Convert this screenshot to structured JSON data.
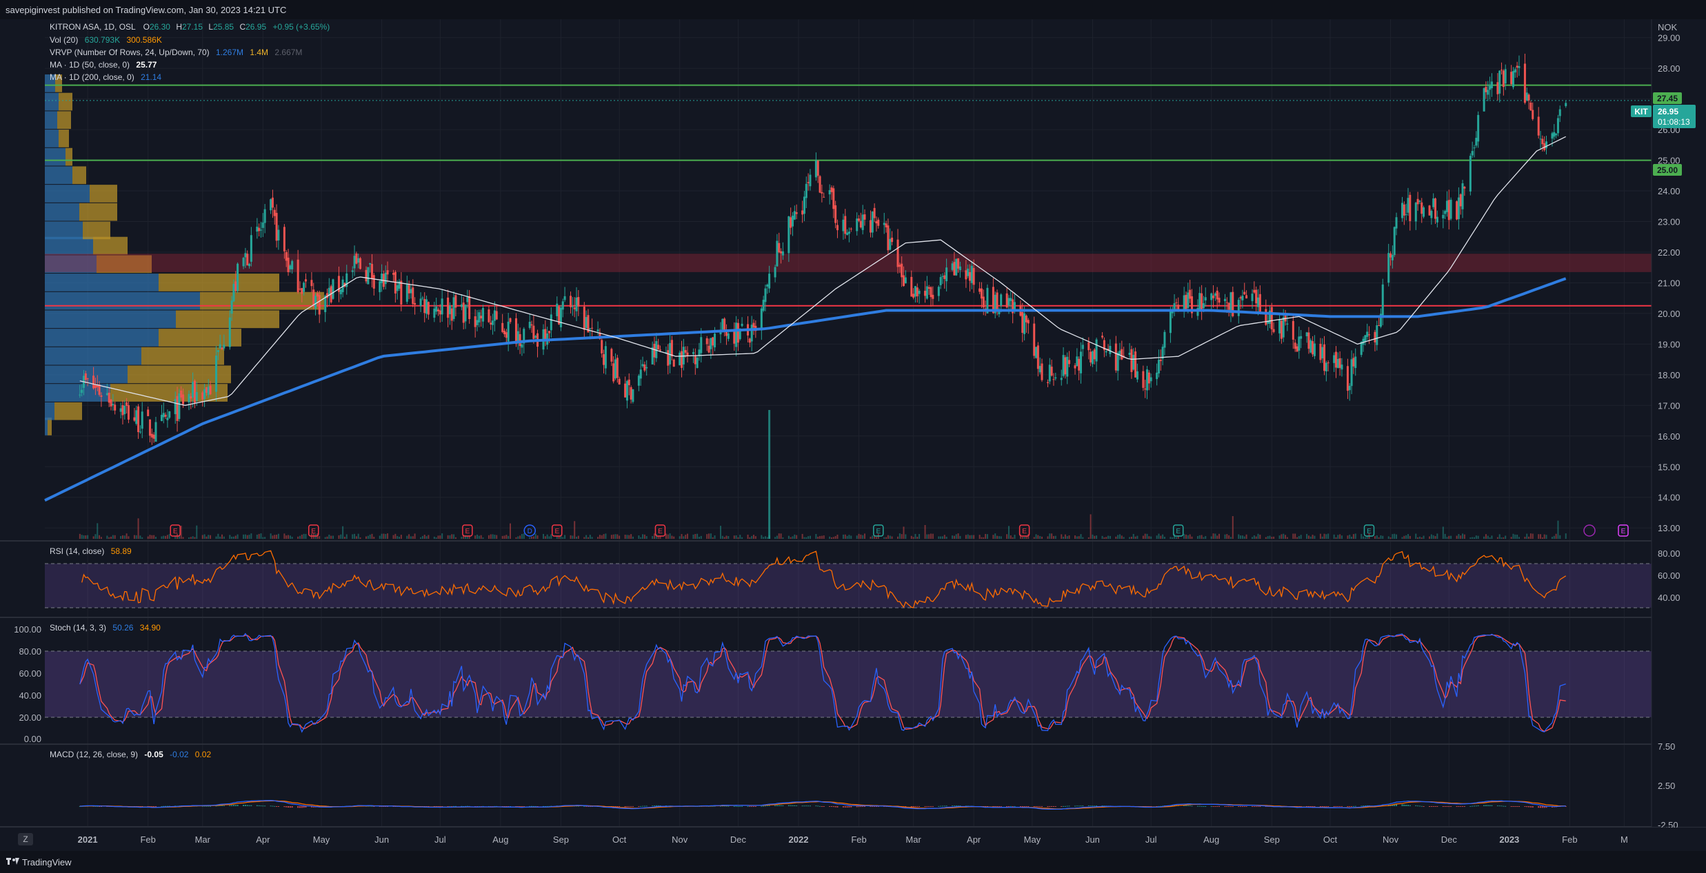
{
  "header": {
    "published": "savepiginvest published on TradingView.com, Jan 30, 2023 14:21 UTC"
  },
  "footer": {
    "brand": "TradingView",
    "zoom_key": "Z"
  },
  "colors": {
    "bg": "#131722",
    "up": "#26a69a",
    "down": "#ef5350",
    "ma50": "#e0e3eb",
    "ma200": "#2962ff",
    "vp_up": "#2f6fa8",
    "vp_down": "#b8912a",
    "rsi": "#ff6d00",
    "stoch_k": "#2962ff",
    "stoch_d": "#ff5252",
    "green_level": "#4caf50",
    "red_level": "#f23645",
    "band": "#7e57c2"
  },
  "main": {
    "symbol_line": {
      "name": "KITRON ASA, 1D, OSL",
      "open_label": "O",
      "open": "26.30",
      "high_label": "H",
      "high": "27.15",
      "low_label": "L",
      "low": "25.85",
      "close_label": "C",
      "close": "26.95",
      "change": "+0.95 (+3.65%)"
    },
    "vol_line": {
      "label": "Vol (20)",
      "v1": "630.793K",
      "v2": "300.586K"
    },
    "vrvp_line": {
      "label": "VRVP (Number Of Rows, 24, Up/Down, 70)",
      "v1": "1.267M",
      "v2": "1.4M",
      "v3": "2.667M"
    },
    "ma50_line": {
      "label": "MA · 1D (50, close, 0)",
      "value": "25.77"
    },
    "ma200_line": {
      "label": "MA · 1D (200, close, 0)",
      "value": "21.14"
    },
    "currency": "NOK",
    "price_ticks": [
      "29.00",
      "28.00",
      "27.00",
      "26.00",
      "25.00",
      "24.00",
      "23.00",
      "22.00",
      "21.00",
      "20.00",
      "19.00",
      "18.00",
      "17.00",
      "16.00",
      "15.00",
      "14.00",
      "13.00"
    ],
    "levels": {
      "upper": "27.45",
      "lower": "25.00"
    },
    "last_tag": {
      "symbol": "KIT",
      "price": "26.95",
      "countdown": "01:08:13"
    },
    "events": [
      "E",
      "E",
      "E",
      "D",
      "E",
      "E",
      "E",
      "E",
      "E",
      "E"
    ]
  },
  "rsi": {
    "label": "RSI (14, close)",
    "value": "58.89",
    "ticks": [
      "80.00",
      "60.00",
      "40.00"
    ]
  },
  "stoch": {
    "label": "Stoch (14, 3, 3)",
    "k": "50.26",
    "d": "34.90",
    "ticks": [
      "100.00",
      "80.00",
      "60.00",
      "40.00",
      "20.00",
      "0.00"
    ]
  },
  "macd": {
    "label": "MACD (12, 26, close, 9)",
    "v1": "-0.05",
    "v2": "-0.02",
    "v3": "0.02",
    "ticks": [
      "7.50",
      "2.50",
      "-2.50"
    ]
  },
  "time_axis": [
    "2021",
    "Feb",
    "Mar",
    "Apr",
    "May",
    "Jun",
    "Jul",
    "Aug",
    "Sep",
    "Oct",
    "Nov",
    "Dec",
    "2022",
    "Feb",
    "Mar",
    "Apr",
    "May",
    "Jun",
    "Jul",
    "Aug",
    "Sep",
    "Oct",
    "Nov",
    "Dec",
    "2023",
    "Feb",
    "M"
  ],
  "chart_data": {
    "type": "candlestick",
    "title": "KITRON ASA, 1D, OSL",
    "ylabel": "NOK",
    "ylim": [
      12.6,
      29.6
    ],
    "x_range": [
      "2020-12-10",
      "2023-03-15"
    ],
    "horizontal_levels": [
      27.45,
      25.0,
      20.25
    ],
    "resistance_zone": [
      21.35,
      21.95
    ],
    "price_path": [
      [
        "2020-12-28",
        17.8
      ],
      [
        "2021-01-10",
        17.4
      ],
      [
        "2021-01-25",
        16.6
      ],
      [
        "2021-02-05",
        16.1
      ],
      [
        "2021-02-20",
        17.2
      ],
      [
        "2021-03-05",
        17.6
      ],
      [
        "2021-03-20",
        21.5
      ],
      [
        "2021-04-05",
        23.3
      ],
      [
        "2021-04-15",
        21.4
      ],
      [
        "2021-05-01",
        20.3
      ],
      [
        "2021-05-20",
        21.6
      ],
      [
        "2021-06-05",
        20.9
      ],
      [
        "2021-06-25",
        20.3
      ],
      [
        "2021-07-15",
        20.1
      ],
      [
        "2021-08-05",
        19.5
      ],
      [
        "2021-08-20",
        19.2
      ],
      [
        "2021-09-05",
        20.5
      ],
      [
        "2021-09-20",
        19.1
      ],
      [
        "2021-10-05",
        17.4
      ],
      [
        "2021-10-20",
        18.8
      ],
      [
        "2021-11-05",
        18.6
      ],
      [
        "2021-11-25",
        19.5
      ],
      [
        "2021-12-10",
        19.2
      ],
      [
        "2021-12-20",
        21.8
      ],
      [
        "2022-01-10",
        24.6
      ],
      [
        "2022-01-25",
        22.6
      ],
      [
        "2022-02-10",
        23.2
      ],
      [
        "2022-02-25",
        21.0
      ],
      [
        "2022-03-10",
        20.5
      ],
      [
        "2022-03-25",
        21.6
      ],
      [
        "2022-04-10",
        20.3
      ],
      [
        "2022-04-25",
        20.0
      ],
      [
        "2022-05-05",
        18.1
      ],
      [
        "2022-05-20",
        18.3
      ],
      [
        "2022-06-05",
        18.9
      ],
      [
        "2022-06-20",
        18.3
      ],
      [
        "2022-07-01",
        17.8
      ],
      [
        "2022-07-15",
        20.4
      ],
      [
        "2022-08-01",
        20.3
      ],
      [
        "2022-08-20",
        20.4
      ],
      [
        "2022-09-05",
        19.6
      ],
      [
        "2022-09-25",
        18.7
      ],
      [
        "2022-10-10",
        17.9
      ],
      [
        "2022-10-25",
        19.6
      ],
      [
        "2022-11-05",
        23.3
      ],
      [
        "2022-11-20",
        23.5
      ],
      [
        "2022-12-05",
        23.4
      ],
      [
        "2022-12-20",
        27.3
      ],
      [
        "2023-01-05",
        27.8
      ],
      [
        "2023-01-20",
        25.5
      ],
      [
        "2023-01-30",
        26.95
      ]
    ],
    "ma50_path": [
      [
        "2020-12-28",
        17.8
      ],
      [
        "2021-02-20",
        17.0
      ],
      [
        "2021-03-15",
        17.3
      ],
      [
        "2021-04-20",
        20.0
      ],
      [
        "2021-05-20",
        21.2
      ],
      [
        "2021-07-01",
        20.8
      ],
      [
        "2021-08-15",
        20.0
      ],
      [
        "2021-09-30",
        19.2
      ],
      [
        "2021-10-30",
        18.6
      ],
      [
        "2021-12-10",
        18.7
      ],
      [
        "2022-01-20",
        20.8
      ],
      [
        "2022-02-25",
        22.3
      ],
      [
        "2022-03-15",
        22.4
      ],
      [
        "2022-04-15",
        21.0
      ],
      [
        "2022-05-15",
        19.5
      ],
      [
        "2022-06-20",
        18.5
      ],
      [
        "2022-07-15",
        18.6
      ],
      [
        "2022-08-15",
        19.6
      ],
      [
        "2022-09-15",
        19.9
      ],
      [
        "2022-10-15",
        19.0
      ],
      [
        "2022-11-05",
        19.4
      ],
      [
        "2022-12-01",
        21.4
      ],
      [
        "2022-12-25",
        23.8
      ],
      [
        "2023-01-15",
        25.3
      ],
      [
        "2023-01-30",
        25.77
      ]
    ],
    "ma200_path": [
      [
        "2020-12-10",
        13.9
      ],
      [
        "2021-03-01",
        16.4
      ],
      [
        "2021-06-01",
        18.6
      ],
      [
        "2021-08-15",
        19.1
      ],
      [
        "2021-10-15",
        19.3
      ],
      [
        "2021-12-15",
        19.5
      ],
      [
        "2022-02-15",
        20.1
      ],
      [
        "2022-05-01",
        20.1
      ],
      [
        "2022-08-01",
        20.1
      ],
      [
        "2022-10-01",
        19.9
      ],
      [
        "2022-11-15",
        19.9
      ],
      [
        "2022-12-20",
        20.2
      ],
      [
        "2023-01-30",
        21.14
      ]
    ],
    "volume_spike": [
      "2021-12-17",
      1.4
    ],
    "rsi_last": 58.89,
    "stoch_last": {
      "k": 50.26,
      "d": 34.9
    },
    "macd_last": {
      "macd": -0.05,
      "signal": -0.02,
      "hist": 0.02
    }
  }
}
